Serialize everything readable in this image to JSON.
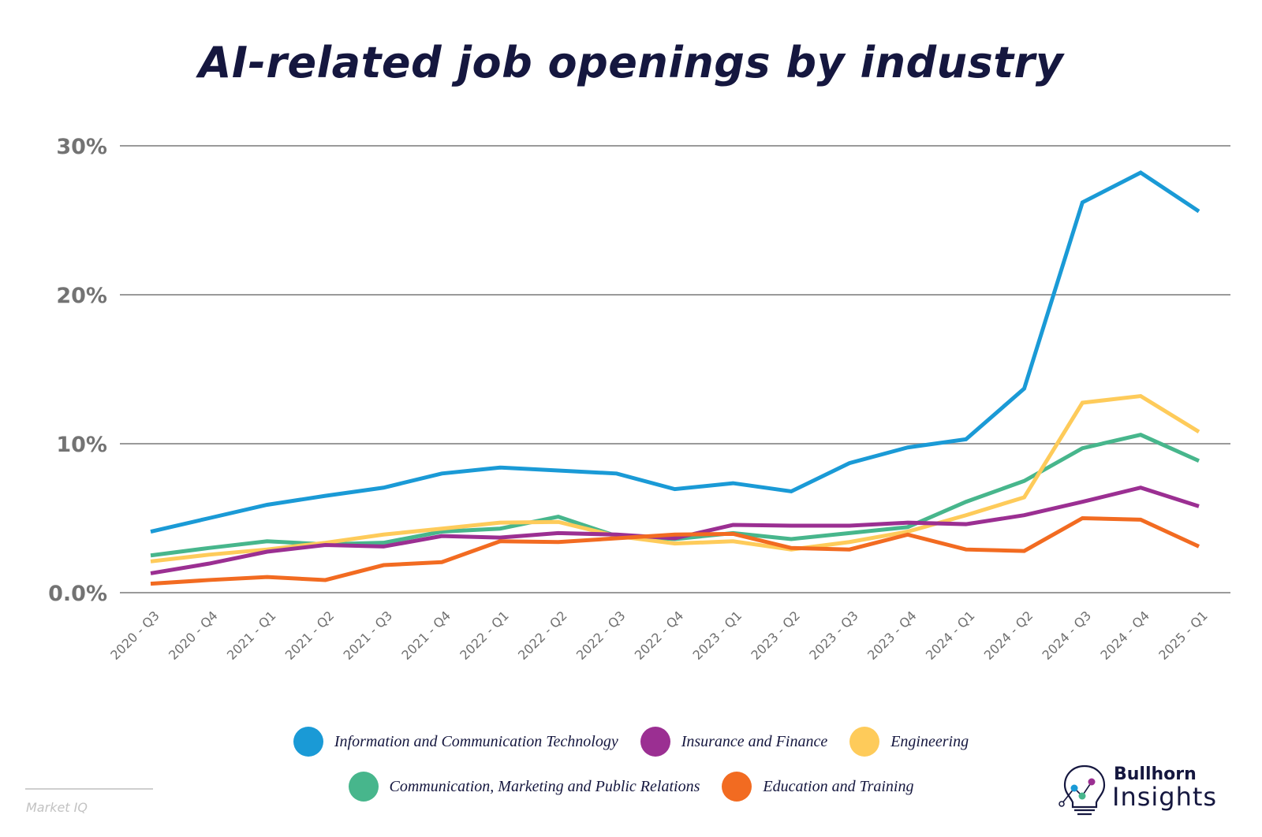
{
  "chart_data": {
    "type": "line",
    "title": "AI-related job openings by industry",
    "xlabel": "",
    "ylabel": "",
    "ylim": [
      0,
      30
    ],
    "grid": true,
    "legend_position": "bottom",
    "yticks": [
      {
        "value": 0,
        "label": "0.0%"
      },
      {
        "value": 10,
        "label": "10%"
      },
      {
        "value": 20,
        "label": "20%"
      },
      {
        "value": 30,
        "label": "30%"
      }
    ],
    "categories": [
      "2020 - Q3",
      "2020 - Q4",
      "2021 - Q1",
      "2021 - Q2",
      "2021 - Q3",
      "2021 - Q4",
      "2022 - Q1",
      "2022 - Q2",
      "2022 - Q3",
      "2022 - Q4",
      "2023 - Q1",
      "2023 - Q2",
      "2023 - Q3",
      "2023 - Q4",
      "2024 - Q1",
      "2024 - Q2",
      "2024 - Q3",
      "2024 - Q4",
      "2025 - Q1"
    ],
    "series": [
      {
        "name": "Communication, Marketing and Public Relations",
        "color": "#47b68c",
        "values": [
          2.5,
          3.0,
          3.45,
          3.25,
          3.35,
          4.1,
          4.3,
          5.1,
          3.8,
          3.6,
          4.0,
          3.6,
          4.0,
          4.4,
          6.1,
          7.5,
          9.7,
          10.6,
          8.85
        ]
      },
      {
        "name": "Engineering",
        "color": "#fecb5a",
        "values": [
          2.1,
          2.55,
          2.9,
          3.35,
          3.9,
          4.3,
          4.7,
          4.75,
          3.8,
          3.3,
          3.45,
          2.9,
          3.4,
          4.1,
          5.2,
          6.4,
          12.75,
          13.2,
          10.8
        ]
      },
      {
        "name": "Insurance and Finance",
        "color": "#9b2f92",
        "values": [
          1.3,
          1.95,
          2.75,
          3.2,
          3.1,
          3.8,
          3.7,
          4.0,
          3.9,
          3.65,
          4.55,
          4.5,
          4.5,
          4.7,
          4.6,
          5.2,
          6.1,
          7.05,
          5.8
        ]
      },
      {
        "name": "Education and Training",
        "color": "#f26b21",
        "values": [
          0.6,
          0.85,
          1.05,
          0.85,
          1.85,
          2.05,
          3.45,
          3.4,
          3.65,
          3.9,
          3.95,
          3.0,
          2.9,
          3.9,
          2.9,
          2.8,
          5.0,
          4.9,
          3.1
        ]
      },
      {
        "name": "Information and Communication Technology",
        "color": "#1a9ad6",
        "values": [
          4.1,
          5.0,
          5.9,
          6.5,
          7.05,
          8.0,
          8.4,
          8.2,
          8.0,
          6.95,
          7.35,
          6.8,
          8.7,
          9.75,
          10.3,
          13.7,
          26.2,
          28.2,
          25.6
        ]
      }
    ]
  },
  "legend": {
    "row1": [
      {
        "label": "Information and Communication Technology",
        "color": "#1a9ad6"
      },
      {
        "label": "Insurance and Finance",
        "color": "#9b2f92"
      },
      {
        "label": "Engineering",
        "color": "#fecb5a"
      }
    ],
    "row2": [
      {
        "label": "Communication, Marketing and Public Relations",
        "color": "#47b68c"
      },
      {
        "label": "Education and Training",
        "color": "#f26b21"
      }
    ]
  },
  "source": "Market IQ",
  "logo": {
    "brand": "Bullhorn",
    "product": "Insights"
  }
}
